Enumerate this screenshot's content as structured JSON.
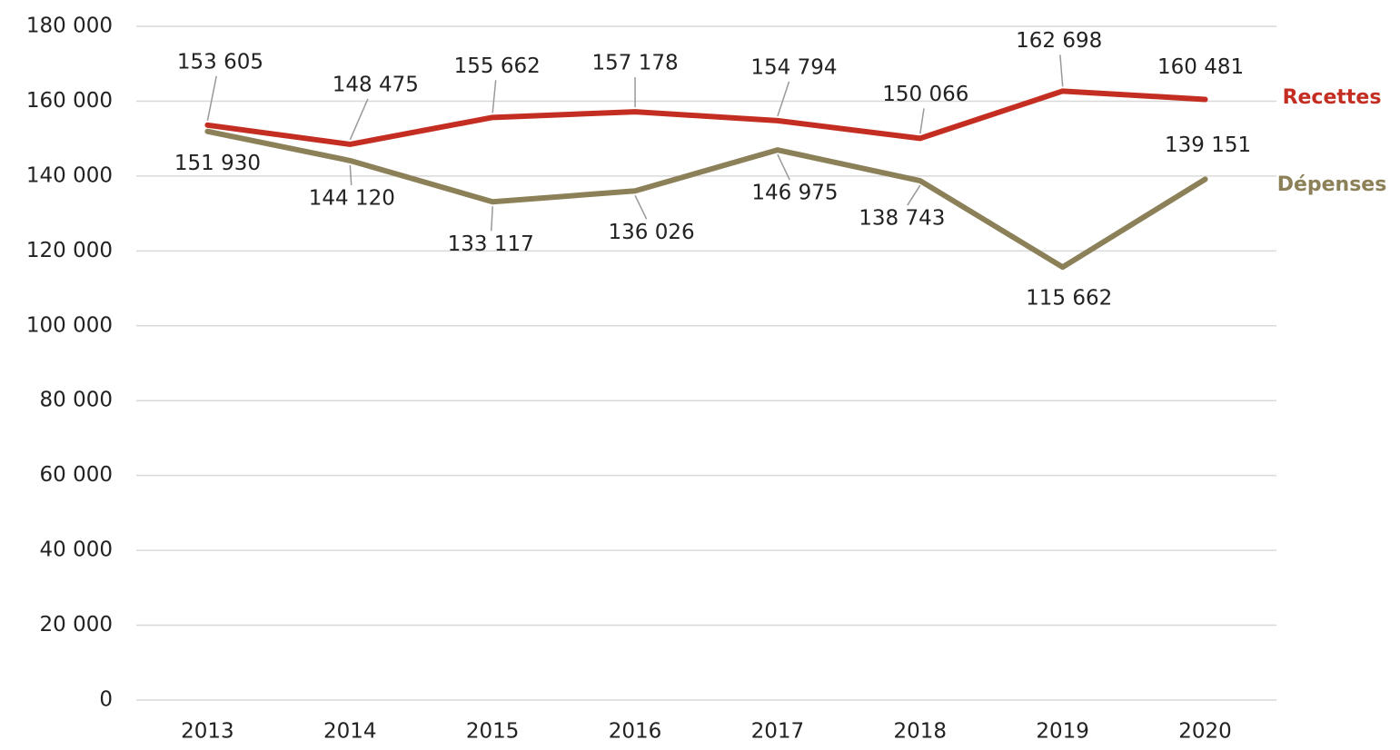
{
  "chart_data": {
    "type": "line",
    "categories": [
      "2013",
      "2014",
      "2015",
      "2016",
      "2017",
      "2018",
      "2019",
      "2020"
    ],
    "series": [
      {
        "name": "Recettes",
        "color": "#c42e22",
        "values": [
          153605,
          148475,
          155662,
          157178,
          154794,
          150066,
          162698,
          160481
        ],
        "value_labels": [
          "153 605",
          "148 475",
          "155 662",
          "157 178",
          "154 794",
          "150 066",
          "162 698",
          "160 481"
        ]
      },
      {
        "name": "Dépenses",
        "color": "#8b8057",
        "values": [
          151930,
          144120,
          133117,
          136026,
          146975,
          138743,
          115662,
          139151
        ],
        "value_labels": [
          "151 930",
          "144 120",
          "133 117",
          "136 026",
          "146 975",
          "138 743",
          "115 662",
          "139 151"
        ]
      }
    ],
    "ylim": [
      0,
      180000
    ],
    "yticks": [
      0,
      {
        "value": 20000,
        "label": "20 000"
      },
      {
        "value": 40000,
        "label": "40 000"
      },
      {
        "value": 60000,
        "label": "60 000"
      },
      {
        "value": 80000,
        "label": "80 000"
      },
      {
        "value": 100000,
        "label": "100 000"
      },
      {
        "value": 120000,
        "label": "120 000"
      },
      {
        "value": 140000,
        "label": "140 000"
      },
      {
        "value": 160000,
        "label": "160 000"
      },
      {
        "value": 180000,
        "label": "180 000"
      }
    ],
    "grid": true
  }
}
